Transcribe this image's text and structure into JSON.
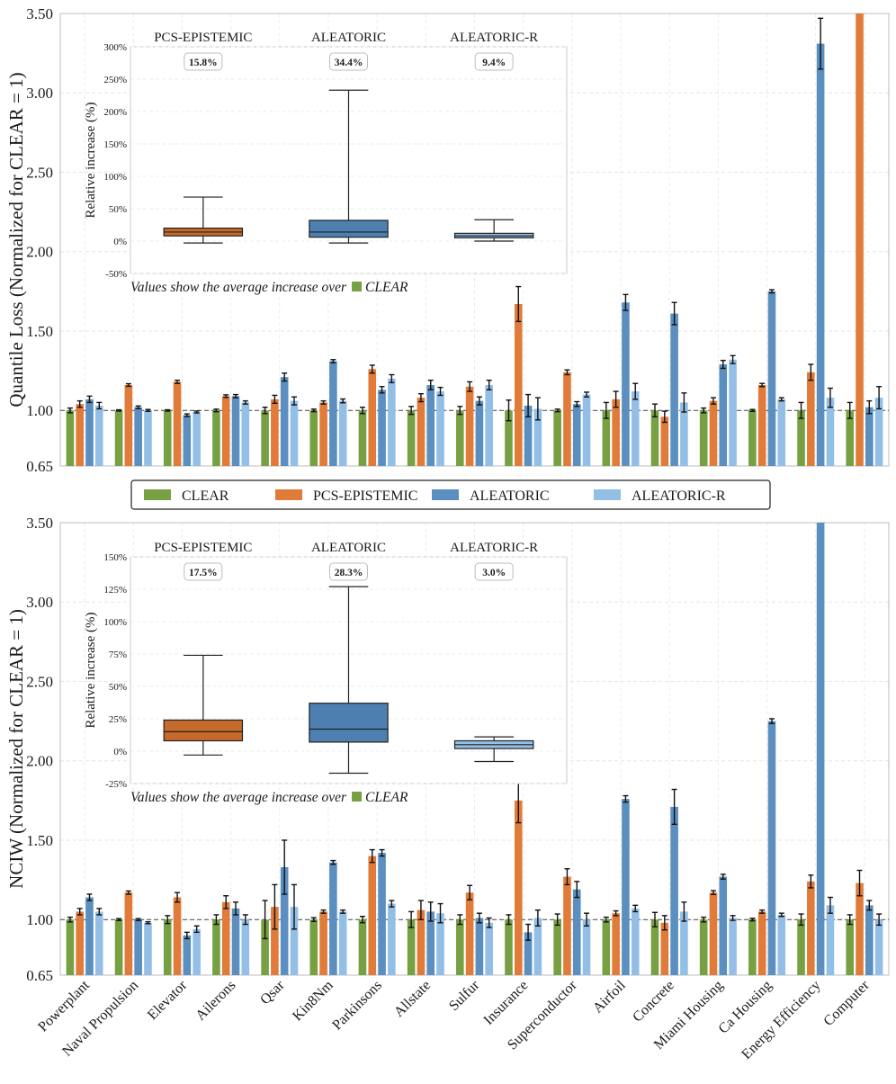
{
  "colors": {
    "CLEAR": "#77a043",
    "PCS-EPISTEMIC": "#e07b39",
    "ALEATORIC": "#5a8fc0",
    "ALEATORIC-R": "#93bfe6"
  },
  "legend": {
    "placement": "between panels, centered",
    "items": [
      "CLEAR",
      "PCS-EPISTEMIC",
      "ALEATORIC",
      "ALEATORIC-R"
    ]
  },
  "chart_data": [
    {
      "type": "bar",
      "panel": "top",
      "ylabel": "Quantile Loss (Normalized for CLEAR = 1)",
      "ylim": [
        0.65,
        3.5
      ],
      "yticks": [
        "0.65",
        "1.00",
        "1.50",
        "2.00",
        "2.50",
        "3.00",
        "3.50"
      ],
      "reference_line": 1.0,
      "grid": true,
      "categories": [
        "Powerplant",
        "Naval Propulsion",
        "Elevator",
        "Ailerons",
        "Qsar",
        "Kin8Nm",
        "Parkinsons",
        "Allstate",
        "Sulfur",
        "Insurance",
        "Superconductor",
        "Airfoil",
        "Concrete",
        "Miami Housing",
        "Ca Housing",
        "Energy Efficiency",
        "Computer"
      ],
      "series": [
        {
          "name": "CLEAR",
          "values": [
            1.0,
            1.0,
            1.0,
            1.0,
            1.0,
            1.0,
            1.0,
            1.0,
            1.0,
            1.0,
            1.0,
            1.0,
            1.0,
            1.0,
            1.0,
            1.0,
            1.0
          ],
          "errors": [
            0.015,
            0.004,
            0.004,
            0.008,
            0.02,
            0.008,
            0.02,
            0.025,
            0.025,
            0.065,
            0.008,
            0.05,
            0.04,
            0.015,
            0.006,
            0.05,
            0.05
          ]
        },
        {
          "name": "PCS-EPISTEMIC",
          "values": [
            1.04,
            1.16,
            1.18,
            1.09,
            1.07,
            1.05,
            1.26,
            1.08,
            1.15,
            1.67,
            1.24,
            1.07,
            0.96,
            1.06,
            1.16,
            1.24,
            3.5
          ],
          "errors": [
            0.02,
            0.008,
            0.01,
            0.008,
            0.025,
            0.01,
            0.025,
            0.025,
            0.03,
            0.11,
            0.015,
            0.05,
            0.035,
            0.02,
            0.01,
            0.05,
            0.0
          ]
        },
        {
          "name": "ALEATORIC",
          "values": [
            1.07,
            1.02,
            0.97,
            1.09,
            1.21,
            1.31,
            1.13,
            1.16,
            1.06,
            1.03,
            1.04,
            1.68,
            1.61,
            1.29,
            1.75,
            3.31,
            1.02
          ]
        },
        {
          "name": "ALEATORIC-R",
          "values": [
            1.03,
            1.0,
            0.99,
            1.05,
            1.06,
            1.06,
            1.2,
            1.12,
            1.16,
            1.01,
            1.1,
            1.12,
            1.05,
            1.32,
            1.07,
            1.08,
            1.08
          ]
        }
      ],
      "error_extra": {
        "ALEATORIC": [
          0.02,
          0.008,
          0.008,
          0.01,
          0.025,
          0.01,
          0.02,
          0.03,
          0.025,
          0.07,
          0.015,
          0.05,
          0.07,
          0.025,
          0.01,
          0.16,
          0.04
        ],
        "ALEATORIC-R": [
          0.02,
          0.006,
          0.006,
          0.01,
          0.025,
          0.012,
          0.025,
          0.025,
          0.03,
          0.07,
          0.015,
          0.05,
          0.06,
          0.025,
          0.01,
          0.06,
          0.07
        ]
      }
    },
    {
      "type": "bar",
      "panel": "bottom",
      "ylabel": "NCIW (Normalized for CLEAR = 1)",
      "ylim": [
        0.65,
        3.5
      ],
      "yticks": [
        "0.65",
        "1.00",
        "1.50",
        "2.00",
        "2.50",
        "3.00",
        "3.50"
      ],
      "reference_line": 1.0,
      "grid": true,
      "categories": [
        "Powerplant",
        "Naval Propulsion",
        "Elevator",
        "Ailerons",
        "Qsar",
        "Kin8Nm",
        "Parkinsons",
        "Allstate",
        "Sulfur",
        "Insurance",
        "Superconductor",
        "Airfoil",
        "Concrete",
        "Miami Housing",
        "Ca Housing",
        "Energy Efficiency",
        "Computer"
      ],
      "series": [
        {
          "name": "CLEAR",
          "values": [
            1.0,
            1.0,
            1.0,
            1.0,
            1.0,
            1.0,
            1.0,
            1.0,
            1.0,
            1.0,
            1.0,
            1.0,
            1.0,
            1.0,
            1.0,
            1.0,
            1.0
          ],
          "errors": [
            0.015,
            0.006,
            0.025,
            0.03,
            0.12,
            0.012,
            0.02,
            0.05,
            0.03,
            0.03,
            0.035,
            0.015,
            0.045,
            0.015,
            0.008,
            0.035,
            0.03
          ]
        },
        {
          "name": "PCS-EPISTEMIC",
          "values": [
            1.05,
            1.17,
            1.14,
            1.11,
            1.08,
            1.05,
            1.4,
            1.06,
            1.17,
            1.75,
            1.27,
            1.04,
            0.98,
            1.17,
            1.05,
            1.24,
            1.23
          ],
          "errors": [
            0.02,
            0.01,
            0.03,
            0.04,
            0.14,
            0.01,
            0.04,
            0.06,
            0.045,
            0.14,
            0.05,
            0.015,
            0.045,
            0.012,
            0.01,
            0.04,
            0.08
          ]
        },
        {
          "name": "ALEATORIC",
          "values": [
            1.14,
            1.0,
            0.9,
            1.07,
            1.33,
            1.36,
            1.42,
            1.05,
            1.01,
            0.92,
            1.19,
            1.76,
            1.71,
            1.27,
            2.25,
            3.5,
            1.09
          ]
        },
        {
          "name": "ALEATORIC-R",
          "values": [
            1.05,
            0.98,
            0.94,
            1.0,
            1.08,
            1.05,
            1.1,
            1.04,
            0.98,
            1.01,
            1.0,
            1.07,
            1.05,
            1.01,
            1.03,
            1.09,
            1.0
          ]
        }
      ],
      "error_extra": {
        "ALEATORIC": [
          0.02,
          0.006,
          0.02,
          0.04,
          0.17,
          0.012,
          0.02,
          0.06,
          0.03,
          0.05,
          0.05,
          0.02,
          0.11,
          0.015,
          0.015,
          0.0,
          0.03
        ],
        "ALEATORIC-R": [
          0.02,
          0.006,
          0.02,
          0.03,
          0.14,
          0.01,
          0.02,
          0.06,
          0.03,
          0.05,
          0.04,
          0.02,
          0.06,
          0.015,
          0.01,
          0.05,
          0.035
        ]
      }
    },
    {
      "type": "box",
      "panel": "top-inset",
      "ylabel": "Relative increase (%)",
      "ylim": [
        -50,
        300
      ],
      "yticks": [
        "-50%",
        "0%",
        "50%",
        "100%",
        "150%",
        "200%",
        "250%",
        "300%"
      ],
      "categories": [
        "PCS-EPISTEMIC",
        "ALEATORIC",
        "ALEATORIC-R"
      ],
      "mean_labels": [
        "15.8%",
        "34.4%",
        "9.4%"
      ],
      "boxes": [
        {
          "whisker_low": -3,
          "q1": 8,
          "median": 14,
          "q3": 20,
          "whisker_high": 68
        },
        {
          "whisker_low": -3,
          "q1": 6,
          "median": 14,
          "q3": 32,
          "whisker_high": 233
        },
        {
          "whisker_low": 0,
          "q1": 5,
          "median": 8,
          "q3": 12,
          "whisker_high": 33
        }
      ],
      "note": "Values show the average increase over",
      "note_ref": "CLEAR"
    },
    {
      "type": "box",
      "panel": "bottom-inset",
      "ylabel": "Relative increase (%)",
      "ylim": [
        -25,
        150
      ],
      "yticks": [
        "-25%",
        "0%",
        "25%",
        "50%",
        "75%",
        "100%",
        "125%",
        "150%"
      ],
      "categories": [
        "PCS-EPISTEMIC",
        "ALEATORIC",
        "ALEATORIC-R"
      ],
      "mean_labels": [
        "17.5%",
        "28.3%",
        "3.0%"
      ],
      "boxes": [
        {
          "whisker_low": -3,
          "q1": 8,
          "median": 15,
          "q3": 24,
          "whisker_high": 74
        },
        {
          "whisker_low": -17,
          "q1": 7,
          "median": 17,
          "q3": 37,
          "whisker_high": 127
        },
        {
          "whisker_low": -8,
          "q1": 2,
          "median": 5,
          "q3": 8,
          "whisker_high": 11
        }
      ],
      "note": "Values show the average increase over",
      "note_ref": "CLEAR"
    }
  ]
}
